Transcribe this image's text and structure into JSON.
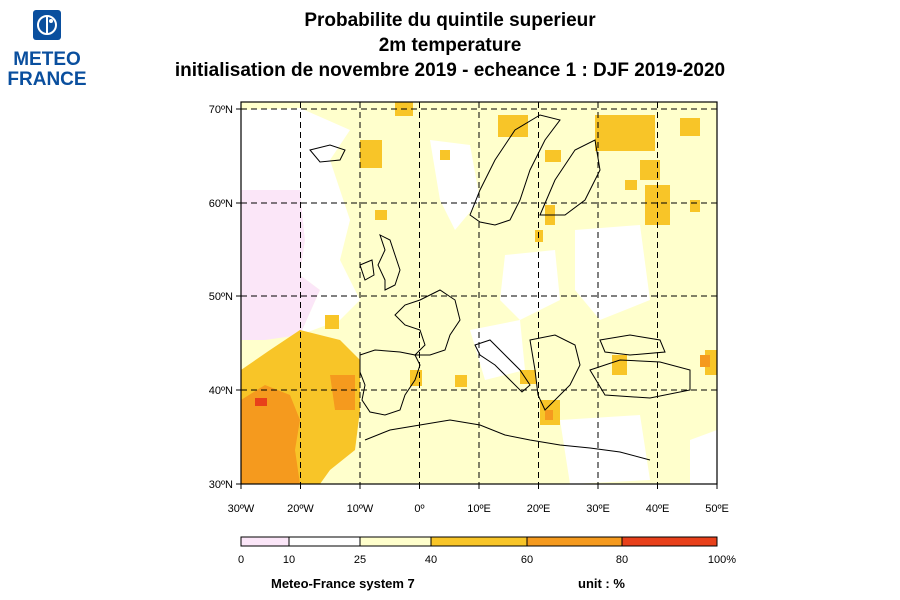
{
  "logo": {
    "line1": "METEO",
    "line2": "FRANCE"
  },
  "title": {
    "line1": "Probabilite du quintile superieur",
    "line2": "2m temperature",
    "line3": "initialisation de novembre 2019  -  echeance 1 : DJF 2019-2020"
  },
  "axes": {
    "lat_labels": [
      "70ºN",
      "60ºN",
      "50ºN",
      "40ºN",
      "30ºN"
    ],
    "lon_labels": [
      "30ºW",
      "20ºW",
      "10ºW",
      "0º",
      "10ºE",
      "20ºE",
      "30ºE",
      "40ºE",
      "50ºE"
    ],
    "lat_range": [
      30,
      70
    ],
    "lon_range": [
      -30,
      50
    ],
    "grid": "dashed, every 10 degrees"
  },
  "colorbar": {
    "labels": [
      "0",
      "10",
      "25",
      "40",
      "60",
      "80",
      "100%"
    ],
    "classes": [
      {
        "range": [
          0,
          10
        ],
        "color": "#fbe6f8"
      },
      {
        "range": [
          10,
          25
        ],
        "color": "#ffffff"
      },
      {
        "range": [
          25,
          40
        ],
        "color": "#ffffcc"
      },
      {
        "range": [
          40,
          60
        ],
        "color": "#f8c528"
      },
      {
        "range": [
          60,
          80
        ],
        "color": "#f59a1e"
      },
      {
        "range": [
          80,
          100
        ],
        "color": "#e8401a"
      }
    ]
  },
  "footer": {
    "left": "Meteo-France system 7",
    "right": "unit : %"
  }
}
